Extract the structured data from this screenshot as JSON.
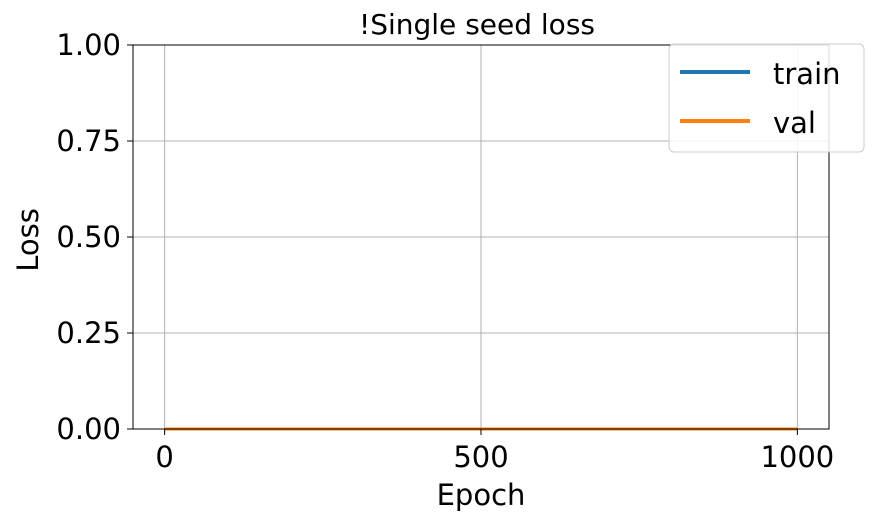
{
  "chart_data": {
    "type": "line",
    "title": "!Single seed loss",
    "xlabel": "Epoch",
    "ylabel": "Loss",
    "xlim": [
      -50,
      1050
    ],
    "ylim": [
      0,
      1
    ],
    "xticks": [
      0,
      500,
      1000
    ],
    "xtick_labels": [
      "0",
      "500",
      "1000"
    ],
    "yticks": [
      0,
      0.25,
      0.5,
      0.75,
      1.0
    ],
    "ytick_labels": [
      "0.00",
      "0.25",
      "0.50",
      "0.75",
      "1.00"
    ],
    "grid": true,
    "legend_position": "top-right",
    "series": [
      {
        "name": "train",
        "color": "#1f77b4",
        "x": [
          0,
          1000
        ],
        "y": [
          0,
          0
        ]
      },
      {
        "name": "val",
        "color": "#ff7f0e",
        "x": [
          0,
          1000
        ],
        "y": [
          0,
          0
        ]
      }
    ]
  }
}
